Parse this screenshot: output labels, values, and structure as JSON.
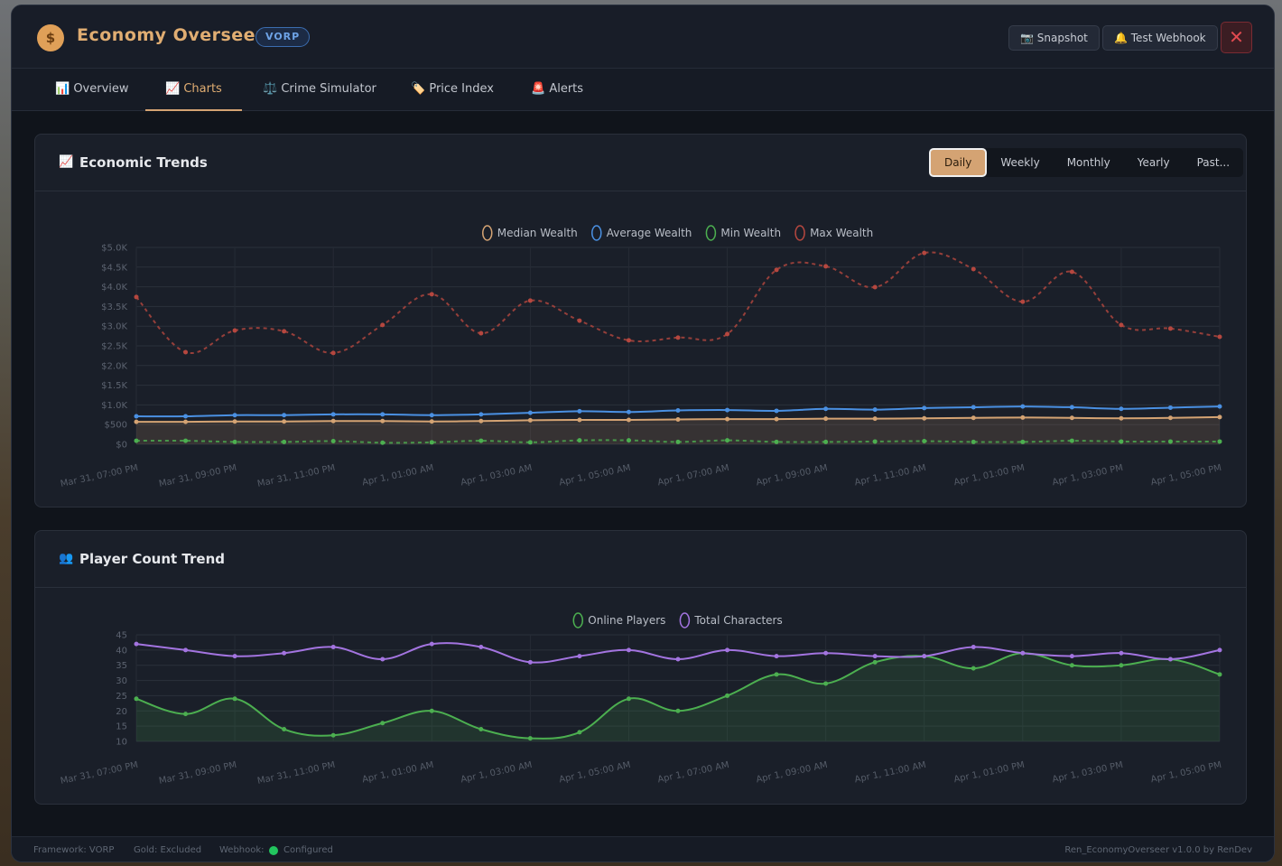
{
  "header": {
    "title": "Economy Overseer",
    "badge": "VORP",
    "buttons": [
      "Snapshot",
      "Test Webhook"
    ]
  },
  "tabs": [
    "Overview",
    "Charts",
    "Crime Simulator",
    "Price Index",
    "Alerts"
  ],
  "active_tab": 1,
  "ranges": [
    "Daily",
    "Weekly",
    "Monthly",
    "Yearly",
    "Past..."
  ],
  "active_range": 0,
  "chart_data": [
    {
      "type": "line",
      "title": "Economic Trends",
      "categories": [
        "Mar 31, 07:00 PM",
        null,
        "Mar 31, 09:00 PM",
        null,
        "Mar 31, 11:00 PM",
        null,
        "Apr 1, 01:00 AM",
        null,
        "Apr 1, 03:00 AM",
        null,
        "Apr 1, 05:00 AM",
        null,
        "Apr 1, 07:00 AM",
        null,
        "Apr 1, 09:00 AM",
        null,
        "Apr 1, 11:00 AM",
        null,
        "Apr 1, 01:00 PM",
        null,
        "Apr 1, 03:00 PM",
        null,
        "Apr 1, 05:00 PM"
      ],
      "series": [
        {
          "name": "Median Wealth",
          "color": "#d4a373",
          "fill": true,
          "dashed": false,
          "values": [
            570,
            570,
            580,
            580,
            590,
            590,
            580,
            590,
            610,
            620,
            620,
            630,
            640,
            640,
            650,
            650,
            660,
            670,
            680,
            670,
            660,
            670,
            690
          ]
        },
        {
          "name": "Average Wealth",
          "color": "#4a90e2",
          "fill": false,
          "dashed": false,
          "values": [
            710,
            710,
            740,
            740,
            760,
            760,
            740,
            760,
            800,
            840,
            820,
            860,
            870,
            850,
            900,
            880,
            920,
            940,
            960,
            940,
            900,
            930,
            960
          ]
        },
        {
          "name": "Min Wealth",
          "color": "#4caf50",
          "fill": false,
          "dashed": true,
          "values": [
            90,
            90,
            60,
            60,
            80,
            40,
            50,
            90,
            50,
            100,
            100,
            60,
            100,
            60,
            60,
            70,
            80,
            60,
            60,
            90,
            70,
            70,
            70
          ]
        },
        {
          "name": "Max Wealth",
          "color": "#b5473f",
          "fill": false,
          "dashed": true,
          "values": [
            3740,
            2340,
            2890,
            2870,
            2320,
            3030,
            3810,
            2820,
            3650,
            3140,
            2640,
            2710,
            2800,
            4430,
            4520,
            3990,
            4860,
            4450,
            3620,
            4380,
            3030,
            2940,
            2730
          ]
        }
      ],
      "ylim": [
        0,
        5000
      ],
      "yticks": [
        {
          "value": 0,
          "label": "$0"
        },
        {
          "value": 500,
          "label": "$500"
        },
        {
          "value": 1000,
          "label": "$1.0K"
        },
        {
          "value": 1500,
          "label": "$1.5K"
        },
        {
          "value": 2000,
          "label": "$2.0K"
        },
        {
          "value": 2500,
          "label": "$2.5K"
        },
        {
          "value": 3000,
          "label": "$3.0K"
        },
        {
          "value": 3500,
          "label": "$3.5K"
        },
        {
          "value": 4000,
          "label": "$4.0K"
        },
        {
          "value": 4500,
          "label": "$4.5K"
        },
        {
          "value": 5000,
          "label": "$5.0K"
        }
      ],
      "grid": true,
      "legend": "top"
    },
    {
      "type": "line",
      "title": "Player Count Trend",
      "categories": [
        "Mar 31, 07:00 PM",
        null,
        "Mar 31, 09:00 PM",
        null,
        "Mar 31, 11:00 PM",
        null,
        "Apr 1, 01:00 AM",
        null,
        "Apr 1, 03:00 AM",
        null,
        "Apr 1, 05:00 AM",
        null,
        "Apr 1, 07:00 AM",
        null,
        "Apr 1, 09:00 AM",
        null,
        "Apr 1, 11:00 AM",
        null,
        "Apr 1, 01:00 PM",
        null,
        "Apr 1, 03:00 PM",
        null,
        "Apr 1, 05:00 PM"
      ],
      "series": [
        {
          "name": "Online Players",
          "color": "#4caf50",
          "fill": true,
          "dashed": false,
          "values": [
            24,
            19,
            24,
            14,
            12,
            16,
            20,
            14,
            11,
            13,
            24,
            20,
            25,
            32,
            29,
            36,
            38,
            34,
            39,
            35,
            35,
            37,
            32
          ]
        },
        {
          "name": "Total Characters",
          "color": "#a374e0",
          "fill": false,
          "dashed": false,
          "values": [
            42,
            40,
            38,
            39,
            41,
            37,
            42,
            41,
            36,
            38,
            40,
            37,
            40,
            38,
            39,
            38,
            38,
            41,
            39,
            38,
            39,
            37,
            40
          ]
        }
      ],
      "ylim": [
        10,
        45
      ],
      "yticks": [
        10,
        15,
        20,
        25,
        30,
        35,
        40,
        45
      ],
      "grid": true,
      "legend": "top"
    }
  ],
  "footer": {
    "framework": "Framework: VORP",
    "gold": "Gold: Excluded",
    "webhook_label": "Webhook:",
    "webhook_status": "Configured",
    "version": "Ren_EconomyOverseer v1.0.0 by RenDev"
  }
}
